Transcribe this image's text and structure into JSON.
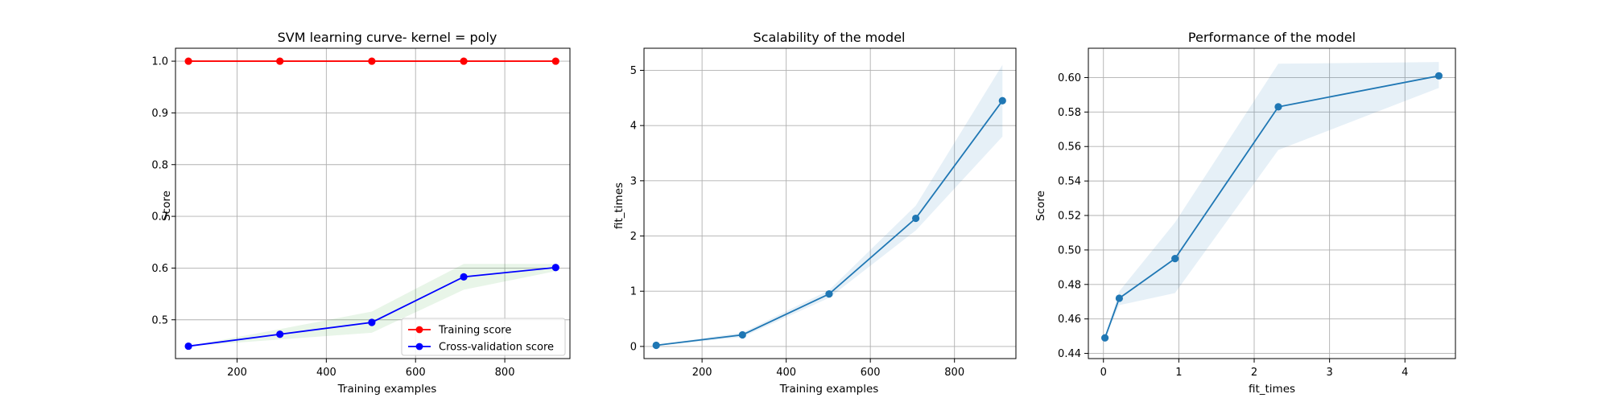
{
  "figure": {
    "background": "#ffffff"
  },
  "chart_data": [
    {
      "id": "learning",
      "type": "line",
      "title": "SVM learning curve- kernel = poly",
      "xlabel": "Training examples",
      "ylabel": "Score",
      "xlim": [
        62,
        946
      ],
      "ylim": [
        0.425,
        1.025
      ],
      "xticks": [
        200,
        400,
        600,
        800
      ],
      "xtick_labels": [
        "200",
        "400",
        "600",
        "800"
      ],
      "yticks": [
        0.5,
        0.6,
        0.7,
        0.8,
        0.9,
        1.0
      ],
      "ytick_labels": [
        "0.5",
        "0.6",
        "0.7",
        "0.8",
        "0.9",
        "1.0"
      ],
      "grid": true,
      "legend": "lower-right",
      "series": [
        {
          "name": "Training score",
          "color": "#ff0000",
          "x": [
            91,
            296,
            502,
            708,
            914
          ],
          "y": [
            1.0,
            1.0,
            1.0,
            1.0,
            1.0
          ],
          "band_lower": [
            1.0,
            1.0,
            1.0,
            1.0,
            1.0
          ],
          "band_upper": [
            1.0,
            1.0,
            1.0,
            1.0,
            1.0
          ],
          "band_color": "#ff0000"
        },
        {
          "name": "Cross-validation score",
          "color": "#0000ff",
          "x": [
            91,
            296,
            502,
            708,
            914
          ],
          "y": [
            0.449,
            0.472,
            0.495,
            0.583,
            0.601
          ],
          "band_lower": [
            0.449,
            0.462,
            0.475,
            0.558,
            0.594
          ],
          "band_upper": [
            0.449,
            0.482,
            0.516,
            0.608,
            0.608
          ],
          "band_color": "#2ca02c"
        }
      ]
    },
    {
      "id": "scalability",
      "type": "line",
      "title": "Scalability of the model",
      "xlabel": "Training examples",
      "ylabel": "fit_times",
      "xlim": [
        62,
        946
      ],
      "ylim": [
        -0.22,
        5.4
      ],
      "xticks": [
        200,
        400,
        600,
        800
      ],
      "xtick_labels": [
        "200",
        "400",
        "600",
        "800"
      ],
      "yticks": [
        0,
        1,
        2,
        3,
        4,
        5
      ],
      "ytick_labels": [
        "0",
        "1",
        "2",
        "3",
        "4",
        "5"
      ],
      "grid": true,
      "series": [
        {
          "color": "#1f77b4",
          "x": [
            91,
            296,
            502,
            708,
            914
          ],
          "y": [
            0.02,
            0.21,
            0.95,
            2.32,
            4.45
          ],
          "band_lower": [
            0.01,
            0.17,
            0.88,
            2.1,
            3.8
          ],
          "band_upper": [
            0.03,
            0.25,
            1.02,
            2.55,
            5.1
          ],
          "band_color": "#1f77b4"
        }
      ]
    },
    {
      "id": "performance",
      "type": "line",
      "title": "Performance of the model",
      "xlabel": "fit_times",
      "ylabel": "Score",
      "xlim": [
        -0.2,
        4.67
      ],
      "ylim": [
        0.437,
        0.617
      ],
      "xticks": [
        0,
        1,
        2,
        3,
        4
      ],
      "xtick_labels": [
        "0",
        "1",
        "2",
        "3",
        "4"
      ],
      "yticks": [
        0.44,
        0.46,
        0.48,
        0.5,
        0.52,
        0.54,
        0.56,
        0.58,
        0.6
      ],
      "ytick_labels": [
        "0.44",
        "0.46",
        "0.48",
        "0.50",
        "0.52",
        "0.54",
        "0.56",
        "0.58",
        "0.60"
      ],
      "grid": true,
      "series": [
        {
          "color": "#1f77b4",
          "x": [
            0.02,
            0.21,
            0.95,
            2.32,
            4.45
          ],
          "y": [
            0.449,
            0.472,
            0.495,
            0.583,
            0.601
          ],
          "band_lower": [
            0.449,
            0.468,
            0.475,
            0.558,
            0.594
          ],
          "band_upper": [
            0.449,
            0.476,
            0.516,
            0.608,
            0.609
          ],
          "band_color": "#1f77b4"
        }
      ]
    }
  ]
}
